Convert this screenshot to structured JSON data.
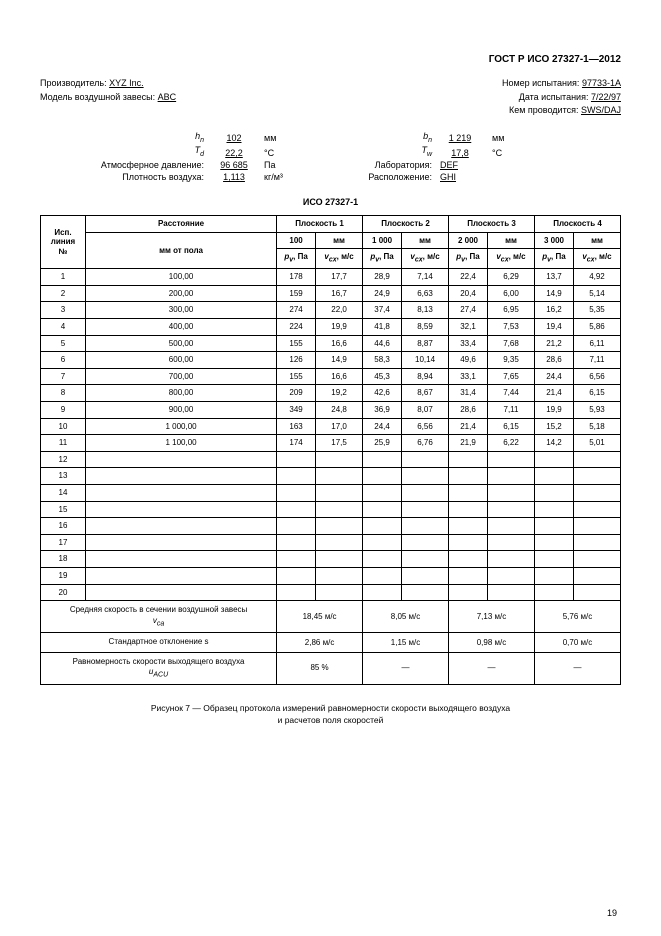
{
  "doc_header": "ГОСТ Р ИСО 27327-1—2012",
  "meta": {
    "manufacturer_lbl": "Производитель:",
    "manufacturer_val": "XYZ Inc.",
    "model_lbl": "Модель воздушной завесы:",
    "model_val": "ABC",
    "test_no_lbl": "Номер испытания:",
    "test_no_val": "97733-1A",
    "test_date_lbl": "Дата испытания:",
    "test_date_val": "7/22/97",
    "tested_by_lbl": "Кем проводится:",
    "tested_by_val": "SWS/DAJ"
  },
  "params": {
    "hn_sym": "h",
    "hn_sub": "n",
    "hn_val": "102",
    "hn_unit": "мм",
    "td_sym": "T",
    "td_sub": "d",
    "td_val": "22,2",
    "td_unit": "°C",
    "atm_lbl": "Атмосферное давление:",
    "atm_val": "96 685",
    "atm_unit": "Па",
    "dens_lbl": "Плотность воздуха:",
    "dens_val": "1,113",
    "dens_unit": "кг/м³",
    "bn_sym": "b",
    "bn_sub": "n",
    "bn_val": "1 219",
    "bn_unit": "мм",
    "tw_sym": "T",
    "tw_sub": "w",
    "tw_val": "17,8",
    "tw_unit": "°C",
    "lab_lbl": "Лаборатория:",
    "lab_val": "DEF",
    "loc_lbl": "Расположение:",
    "loc_val": "GHI"
  },
  "iso_title": "ИСО 27327-1",
  "headers": {
    "line_no": "Исп.\nлиния\n№",
    "distance": "Расстояние",
    "plane1": "Плоскость 1",
    "p1_dist": "100",
    "plane2": "Плоскость 2",
    "p2_dist": "1 000",
    "plane3": "Плоскость 3",
    "p3_dist": "2 000",
    "plane4": "Плоскость 4",
    "p4_dist": "3 000",
    "mm": "мм",
    "mm_floor": "мм от пола",
    "pv": "p",
    "pv_sub": "v",
    "pv_unit": ", Па",
    "vcx": "v",
    "vcx_sub": "cx",
    "vcx_unit": ", м/с"
  },
  "rows": [
    {
      "n": "1",
      "d": "100,00",
      "p1p": "178",
      "p1v": "17,7",
      "p2p": "28,9",
      "p2v": "7,14",
      "p3p": "22,4",
      "p3v": "6,29",
      "p4p": "13,7",
      "p4v": "4,92"
    },
    {
      "n": "2",
      "d": "200,00",
      "p1p": "159",
      "p1v": "16,7",
      "p2p": "24,9",
      "p2v": "6,63",
      "p3p": "20,4",
      "p3v": "6,00",
      "p4p": "14,9",
      "p4v": "5,14"
    },
    {
      "n": "3",
      "d": "300,00",
      "p1p": "274",
      "p1v": "22,0",
      "p2p": "37,4",
      "p2v": "8,13",
      "p3p": "27,4",
      "p3v": "6,95",
      "p4p": "16,2",
      "p4v": "5,35"
    },
    {
      "n": "4",
      "d": "400,00",
      "p1p": "224",
      "p1v": "19,9",
      "p2p": "41,8",
      "p2v": "8,59",
      "p3p": "32,1",
      "p3v": "7,53",
      "p4p": "19,4",
      "p4v": "5,86"
    },
    {
      "n": "5",
      "d": "500,00",
      "p1p": "155",
      "p1v": "16,6",
      "p2p": "44,6",
      "p2v": "8,87",
      "p3p": "33,4",
      "p3v": "7,68",
      "p4p": "21,2",
      "p4v": "6,11"
    },
    {
      "n": "6",
      "d": "600,00",
      "p1p": "126",
      "p1v": "14,9",
      "p2p": "58,3",
      "p2v": "10,14",
      "p3p": "49,6",
      "p3v": "9,35",
      "p4p": "28,6",
      "p4v": "7,11"
    },
    {
      "n": "7",
      "d": "700,00",
      "p1p": "155",
      "p1v": "16,6",
      "p2p": "45,3",
      "p2v": "8,94",
      "p3p": "33,1",
      "p3v": "7,65",
      "p4p": "24,4",
      "p4v": "6,56"
    },
    {
      "n": "8",
      "d": "800,00",
      "p1p": "209",
      "p1v": "19,2",
      "p2p": "42,6",
      "p2v": "8,67",
      "p3p": "31,4",
      "p3v": "7,44",
      "p4p": "21,4",
      "p4v": "6,15"
    },
    {
      "n": "9",
      "d": "900,00",
      "p1p": "349",
      "p1v": "24,8",
      "p2p": "36,9",
      "p2v": "8,07",
      "p3p": "28,6",
      "p3v": "7,11",
      "p4p": "19,9",
      "p4v": "5,93"
    },
    {
      "n": "10",
      "d": "1 000,00",
      "p1p": "163",
      "p1v": "17,0",
      "p2p": "24,4",
      "p2v": "6,56",
      "p3p": "21,4",
      "p3v": "6,15",
      "p4p": "15,2",
      "p4v": "5,18"
    },
    {
      "n": "11",
      "d": "1 100,00",
      "p1p": "174",
      "p1v": "17,5",
      "p2p": "25,9",
      "p2v": "6,76",
      "p3p": "21,9",
      "p3v": "6,22",
      "p4p": "14,2",
      "p4v": "5,01"
    },
    {
      "n": "12",
      "d": "",
      "p1p": "",
      "p1v": "",
      "p2p": "",
      "p2v": "",
      "p3p": "",
      "p3v": "",
      "p4p": "",
      "p4v": ""
    },
    {
      "n": "13",
      "d": "",
      "p1p": "",
      "p1v": "",
      "p2p": "",
      "p2v": "",
      "p3p": "",
      "p3v": "",
      "p4p": "",
      "p4v": ""
    },
    {
      "n": "14",
      "d": "",
      "p1p": "",
      "p1v": "",
      "p2p": "",
      "p2v": "",
      "p3p": "",
      "p3v": "",
      "p4p": "",
      "p4v": ""
    },
    {
      "n": "15",
      "d": "",
      "p1p": "",
      "p1v": "",
      "p2p": "",
      "p2v": "",
      "p3p": "",
      "p3v": "",
      "p4p": "",
      "p4v": ""
    },
    {
      "n": "16",
      "d": "",
      "p1p": "",
      "p1v": "",
      "p2p": "",
      "p2v": "",
      "p3p": "",
      "p3v": "",
      "p4p": "",
      "p4v": ""
    },
    {
      "n": "17",
      "d": "",
      "p1p": "",
      "p1v": "",
      "p2p": "",
      "p2v": "",
      "p3p": "",
      "p3v": "",
      "p4p": "",
      "p4v": ""
    },
    {
      "n": "18",
      "d": "",
      "p1p": "",
      "p1v": "",
      "p2p": "",
      "p2v": "",
      "p3p": "",
      "p3v": "",
      "p4p": "",
      "p4v": ""
    },
    {
      "n": "19",
      "d": "",
      "p1p": "",
      "p1v": "",
      "p2p": "",
      "p2v": "",
      "p3p": "",
      "p3v": "",
      "p4p": "",
      "p4v": ""
    },
    {
      "n": "20",
      "d": "",
      "p1p": "",
      "p1v": "",
      "p2p": "",
      "p2v": "",
      "p3p": "",
      "p3v": "",
      "p4p": "",
      "p4v": ""
    }
  ],
  "summary": {
    "avg_lbl": "Средняя скорость в сечении воздушной завесы",
    "avg_sym": "v",
    "avg_sub": "ca",
    "avg": [
      "18,45 м/с",
      "8,05 м/с",
      "7,13 м/с",
      "5,76 м/с"
    ],
    "std_lbl": "Стандартное отклонение s",
    "std": [
      "2,86 м/с",
      "1,15 м/с",
      "0,98 м/с",
      "0,70 м/с"
    ],
    "uni_lbl": "Равномерность скорости выходящего воздуха",
    "uni_sym": "u",
    "uni_sub": "ACU",
    "uni": [
      "85 %",
      "—",
      "—",
      "—"
    ]
  },
  "caption": "Рисунок  7  — Образец протокола измерений равномерности скорости выходящего воздуха\nи расчетов поля скоростей",
  "page_number": "19"
}
